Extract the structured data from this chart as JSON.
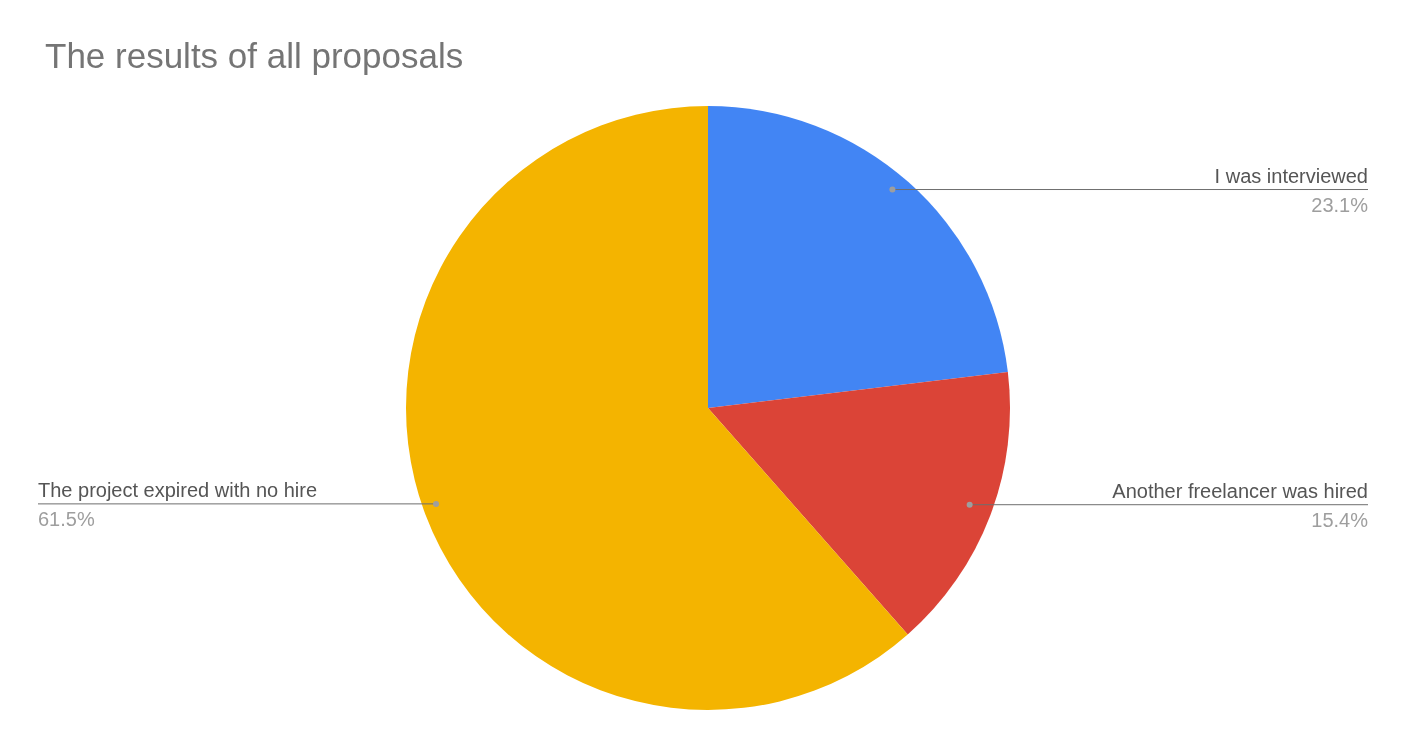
{
  "chart_data": {
    "type": "pie",
    "title": "The results of all proposals",
    "categories": [
      "I was interviewed",
      "Another freelancer was hired",
      "The project expired with no hire"
    ],
    "values": [
      23.1,
      15.4,
      61.5
    ],
    "colors": [
      "#4285f4",
      "#db4437",
      "#f4b400"
    ],
    "value_labels": [
      "23.1%",
      "15.4%",
      "61.5%"
    ]
  }
}
